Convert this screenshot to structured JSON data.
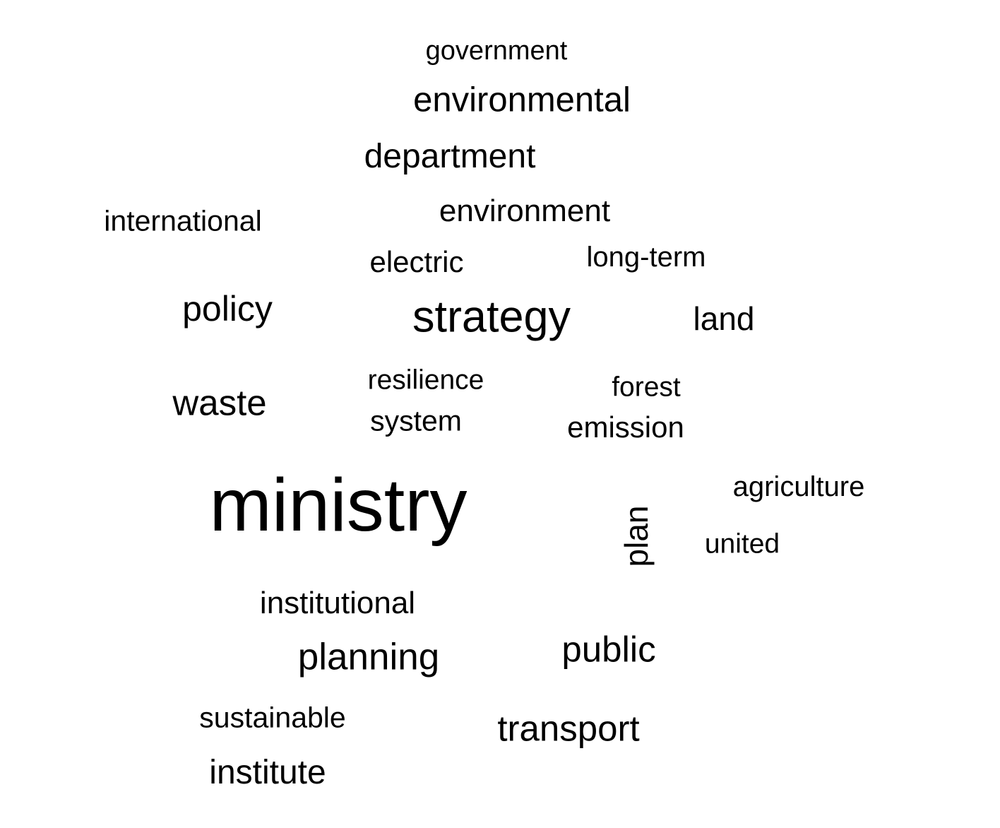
{
  "word_cloud": {
    "words": [
      "government",
      "environmental",
      "department",
      "international",
      "environment",
      "electric",
      "long-term",
      "policy",
      "strategy",
      "land",
      "resilience",
      "forest",
      "waste",
      "system",
      "emission",
      "ministry",
      "agriculture",
      "plan",
      "united",
      "institutional",
      "planning",
      "public",
      "sustainable",
      "transport",
      "institute"
    ],
    "text_color": "#000000",
    "background_color": "#ffffff"
  }
}
